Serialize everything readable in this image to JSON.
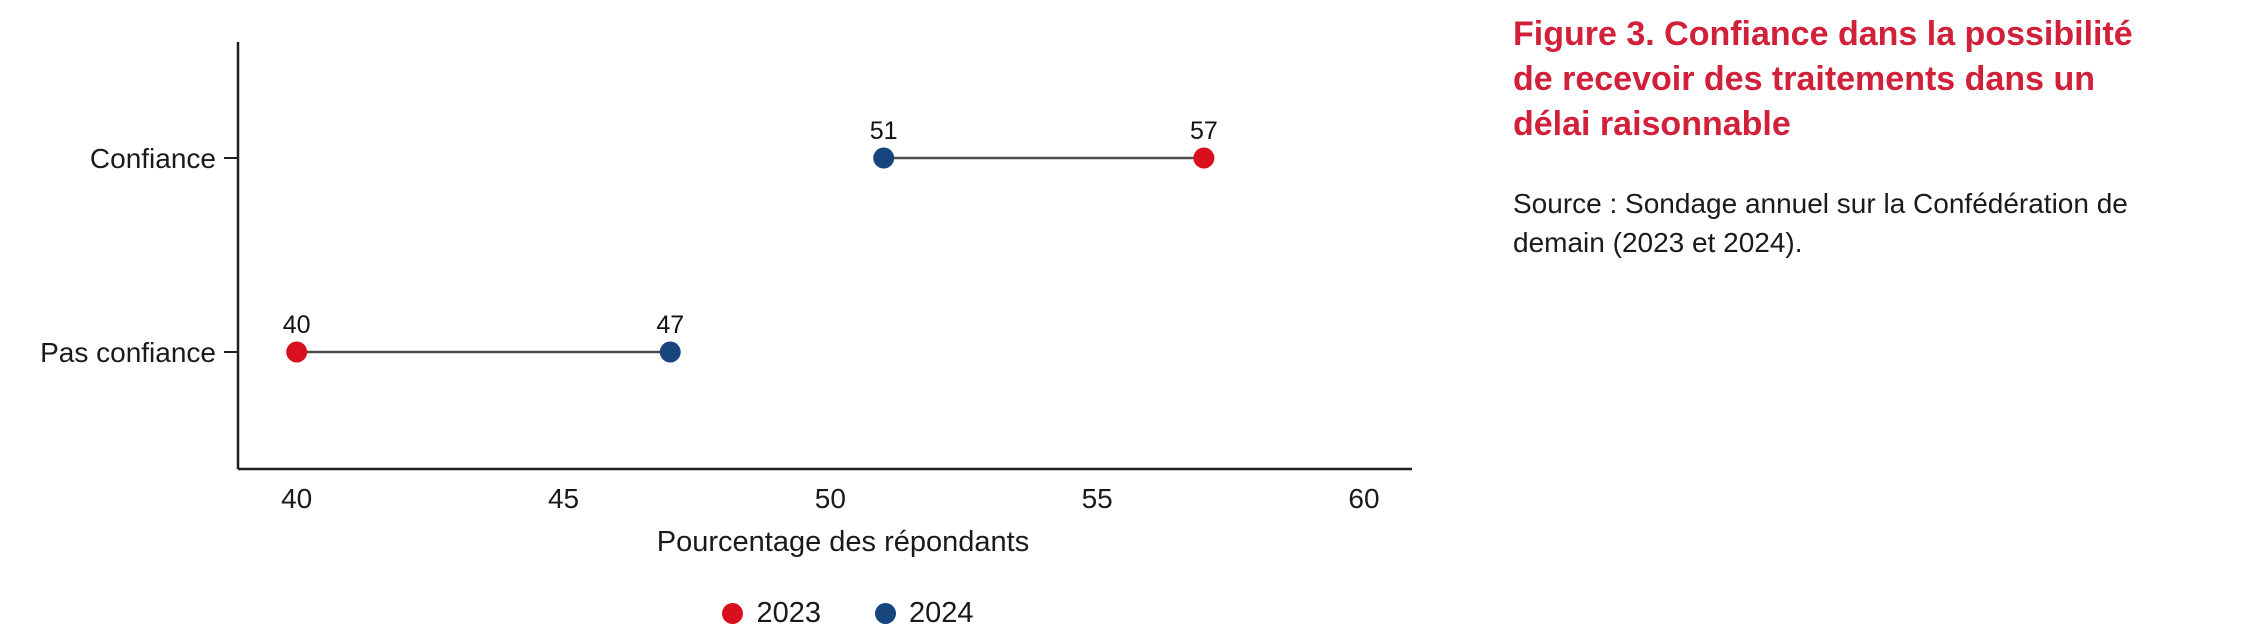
{
  "figure": {
    "title": "Figure 3. Confiance dans la possibilité de recevoir des traitements dans un délai raisonnable",
    "title_lines": [
      "Figure 3. Confiance dans la possibilité",
      "de recevoir des traitements dans un",
      "délai raisonnable"
    ],
    "title_color": "#d0203a",
    "source": "Source : Sondage annuel sur la Confédération de demain (2023 et 2024).",
    "source_lines": [
      "Source : Sondage annuel sur la Confédération de",
      "demain (2023 et 2024)."
    ]
  },
  "chart_data": {
    "type": "scatter",
    "variant": "dumbbell",
    "title": "Figure 3. Confiance dans la possibilité de recevoir des traitements dans un délai raisonnable",
    "categories": [
      "Confiance",
      "Pas confiance"
    ],
    "series": [
      {
        "name": "2023",
        "color": "#d8101e",
        "values": [
          57,
          40
        ]
      },
      {
        "name": "2024",
        "color": "#17457e",
        "values": [
          51,
          47
        ]
      }
    ],
    "xlabel": "Pourcentage des répondants",
    "ylabel": "",
    "x_ticks": [
      40,
      45,
      50,
      55,
      60
    ],
    "xlim": [
      38.9,
      60.9
    ],
    "grid": false,
    "legend_position": "bottom",
    "value_labels_shown": true
  }
}
